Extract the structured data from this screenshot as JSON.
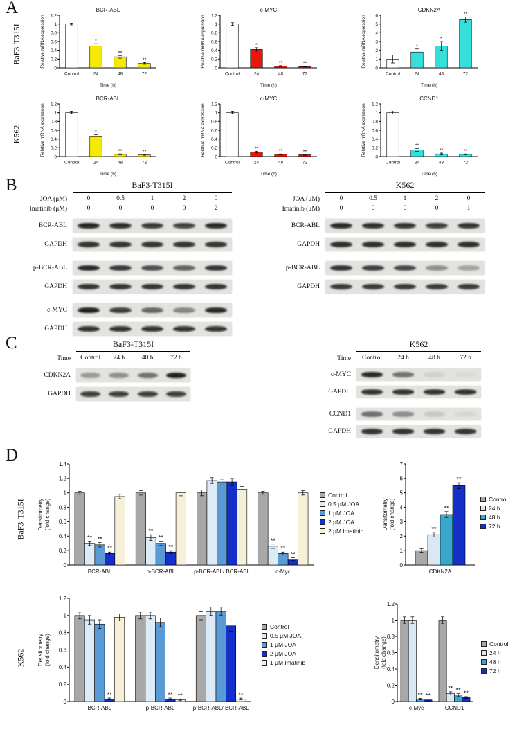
{
  "panels": {
    "A": {
      "letter": "A",
      "rows": [
        {
          "label": "BaF3-T315I",
          "charts": [
            "a1",
            "a2",
            "a3"
          ]
        },
        {
          "label": "K562",
          "charts": [
            "a4",
            "a5",
            "a6"
          ]
        }
      ]
    },
    "B": {
      "letter": "B",
      "left": {
        "title": "BaF3-T315I",
        "cond_rows": [
          {
            "label": "JOA (μM)",
            "values": [
              "0",
              "0.5",
              "1",
              "2",
              "0"
            ]
          },
          {
            "label": "Imatinib (μM)",
            "values": [
              "0",
              "0",
              "0",
              "0",
              "2"
            ]
          }
        ],
        "blots": [
          {
            "label": "BCR-ABL",
            "bands": [
              0.92,
              0.88,
              0.82,
              0.78,
              0.9
            ]
          },
          {
            "label": "GAPDH",
            "bands": [
              0.85,
              0.85,
              0.85,
              0.85,
              0.85
            ]
          },
          {
            "label": "p-BCR-ABL",
            "bands": [
              0.9,
              0.82,
              0.72,
              0.62,
              0.85
            ]
          },
          {
            "label": "GAPDH",
            "bands": [
              0.85,
              0.85,
              0.85,
              0.85,
              0.85
            ]
          },
          {
            "label": "c-MYC",
            "bands": [
              0.95,
              0.8,
              0.6,
              0.45,
              0.9
            ]
          },
          {
            "label": "GAPDH",
            "bands": [
              0.85,
              0.85,
              0.85,
              0.85,
              0.85
            ]
          }
        ]
      },
      "right": {
        "title": "K562",
        "cond_rows": [
          {
            "label": "JOA (μM)",
            "values": [
              "0",
              "0.5",
              "1",
              "2",
              "0"
            ]
          },
          {
            "label": "Imatinib (μM)",
            "values": [
              "0",
              "0",
              "0",
              "0",
              "1"
            ]
          }
        ],
        "blots": [
          {
            "label": "BCR-ABL",
            "bands": [
              0.9,
              0.87,
              0.85,
              0.8,
              0.85
            ]
          },
          {
            "label": "GAPDH",
            "bands": [
              0.88,
              0.88,
              0.88,
              0.88,
              0.88
            ]
          },
          {
            "label": "p-BCR-ABL",
            "bands": [
              0.85,
              0.8,
              0.75,
              0.4,
              0.3
            ]
          },
          {
            "label": "GAPDH",
            "bands": [
              0.82,
              0.82,
              0.82,
              0.82,
              0.82
            ]
          }
        ]
      }
    },
    "C": {
      "letter": "C",
      "left": {
        "title": "BaF3-T315I",
        "cond_rows": [
          {
            "label": "Time",
            "values": [
              "Control",
              "24 h",
              "48 h",
              "72 h"
            ]
          }
        ],
        "blots": [
          {
            "label": "CDKN2A",
            "bands": [
              0.35,
              0.4,
              0.55,
              0.95
            ]
          },
          {
            "label": "GAPDH",
            "bands": [
              0.8,
              0.8,
              0.8,
              0.8
            ]
          }
        ]
      },
      "right": {
        "title": "K562",
        "cond_rows": [
          {
            "label": "Time",
            "values": [
              "Control",
              "24 h",
              "48 h",
              "72 h"
            ]
          }
        ],
        "blots": [
          {
            "label": "c-MYC",
            "bands": [
              0.9,
              0.55,
              0.08,
              0.04
            ]
          },
          {
            "label": "GAPDH",
            "bands": [
              0.85,
              0.85,
              0.85,
              0.85
            ]
          },
          {
            "label": "CCND1",
            "bands": [
              0.55,
              0.4,
              0.12,
              0.05
            ]
          },
          {
            "label": "GAPDH",
            "bands": [
              0.85,
              0.85,
              0.85,
              0.85
            ]
          }
        ]
      }
    },
    "D": {
      "letter": "D",
      "rows": [
        {
          "label": "BaF3-T315I",
          "charts": [
            "d1",
            "d2"
          ]
        },
        {
          "label": "K562",
          "charts": [
            "d3",
            "d4"
          ]
        }
      ]
    }
  },
  "chart_data": [
    {
      "id": "a1",
      "type": "bar",
      "title": "BCR-ABL",
      "ylabel": "Relative mRNA expression",
      "xlabel": "Time (h)",
      "categories": [
        "Control",
        "24",
        "48",
        "72"
      ],
      "ylim": [
        0,
        1.2
      ],
      "yticks": [
        0,
        0.2,
        0.4,
        0.6,
        0.8,
        1,
        1.2
      ],
      "series": [
        {
          "name": "",
          "colors": [
            "#ffffff",
            "#f6eb00",
            "#f6eb00",
            "#f6eb00"
          ],
          "values": [
            1,
            0.5,
            0.25,
            0.1
          ],
          "errors": [
            0.02,
            0.05,
            0.03,
            0.02
          ],
          "sig": [
            "",
            "*",
            "**",
            "**"
          ]
        }
      ]
    },
    {
      "id": "a2",
      "type": "bar",
      "title": "c-MYC",
      "ylabel": "Relative mRNA expression",
      "xlabel": "Time (h)",
      "categories": [
        "Control",
        "24",
        "48",
        "72"
      ],
      "ylim": [
        0,
        1.2
      ],
      "yticks": [
        0,
        0.2,
        0.4,
        0.6,
        0.8,
        1,
        1.2
      ],
      "series": [
        {
          "name": "",
          "colors": [
            "#ffffff",
            "#e8160c",
            "#e8160c",
            "#e8160c"
          ],
          "values": [
            1,
            0.42,
            0.04,
            0.03
          ],
          "errors": [
            0.03,
            0.04,
            0.01,
            0.01
          ],
          "sig": [
            "",
            "*",
            "**",
            "**"
          ]
        }
      ]
    },
    {
      "id": "a3",
      "type": "bar",
      "title": "CDKN2A",
      "ylabel": "Relative mRNA expression",
      "xlabel": "Time (h)",
      "categories": [
        "Control",
        "24",
        "48",
        "72"
      ],
      "ylim": [
        0,
        6
      ],
      "yticks": [
        0,
        1,
        2,
        3,
        4,
        5,
        6
      ],
      "series": [
        {
          "name": "",
          "colors": [
            "#ffffff",
            "#35e0dc",
            "#35e0dc",
            "#35e0dc"
          ],
          "values": [
            1,
            1.8,
            2.5,
            5.5
          ],
          "errors": [
            0.45,
            0.35,
            0.5,
            0.3
          ],
          "sig": [
            "",
            "*",
            "*",
            "**"
          ]
        }
      ]
    },
    {
      "id": "a4",
      "type": "bar",
      "title": "BCR-ABL",
      "ylabel": "Relative mRNA expression",
      "xlabel": "Time (h)",
      "categories": [
        "Control",
        "24",
        "48",
        "72"
      ],
      "ylim": [
        0,
        1.2
      ],
      "yticks": [
        0,
        0.2,
        0.4,
        0.6,
        0.8,
        1,
        1.2
      ],
      "series": [
        {
          "name": "",
          "colors": [
            "#ffffff",
            "#f6eb00",
            "#f6eb00",
            "#f6eb00"
          ],
          "values": [
            1,
            0.45,
            0.05,
            0.04
          ],
          "errors": [
            0.02,
            0.05,
            0.01,
            0.01
          ],
          "sig": [
            "",
            "*",
            "**",
            "**"
          ]
        }
      ]
    },
    {
      "id": "a5",
      "type": "bar",
      "title": "c-MYC",
      "ylabel": "Relative mRNA expression",
      "xlabel": "Time (h)",
      "categories": [
        "Control",
        "24",
        "48",
        "72"
      ],
      "ylim": [
        0,
        1.2
      ],
      "yticks": [
        0,
        0.2,
        0.4,
        0.6,
        0.8,
        1,
        1.2
      ],
      "series": [
        {
          "name": "",
          "colors": [
            "#ffffff",
            "#e8160c",
            "#e8160c",
            "#e8160c"
          ],
          "values": [
            1,
            0.1,
            0.05,
            0.04
          ],
          "errors": [
            0.02,
            0.02,
            0.01,
            0.01
          ],
          "sig": [
            "",
            "**",
            "**",
            "**"
          ]
        }
      ]
    },
    {
      "id": "a6",
      "type": "bar",
      "title": "CCND1",
      "ylabel": "Relative mRNA expression",
      "xlabel": "Time (h)",
      "categories": [
        "Control",
        "24",
        "48",
        "72"
      ],
      "ylim": [
        0,
        1.2
      ],
      "yticks": [
        0,
        0.2,
        0.4,
        0.6,
        0.8,
        1,
        1.2
      ],
      "series": [
        {
          "name": "",
          "colors": [
            "#ffffff",
            "#35e0dc",
            "#35e0dc",
            "#35e0dc"
          ],
          "values": [
            1,
            0.15,
            0.06,
            0.05
          ],
          "errors": [
            0.03,
            0.03,
            0.02,
            0.01
          ],
          "sig": [
            "",
            "**",
            "**",
            "**"
          ]
        }
      ]
    },
    {
      "id": "d1",
      "type": "bar",
      "ylabel": [
        "Densitometry",
        "(fold change)"
      ],
      "categories": [
        "BCR-ABL",
        "p-BCR-ABL",
        "p-BCR-ABL/ BCR-ABL",
        "c-Myc"
      ],
      "ylim": [
        0,
        1.4
      ],
      "yticks": [
        0,
        0.2,
        0.4,
        0.6,
        0.8,
        1,
        1.2,
        1.4
      ],
      "legend_position": "right",
      "series": [
        {
          "name": "Control",
          "color": "#a8a8a8",
          "values": [
            1,
            1,
            1,
            1
          ],
          "errors": [
            0.02,
            0.03,
            0.04,
            0.02
          ],
          "sig": [
            "",
            "",
            "",
            ""
          ]
        },
        {
          "name": "0.5 μM JOA",
          "color": "#dcebf6",
          "values": [
            0.3,
            0.38,
            1.17,
            0.26
          ],
          "errors": [
            0.03,
            0.04,
            0.04,
            0.03
          ],
          "sig": [
            "**",
            "**",
            "",
            "**"
          ]
        },
        {
          "name": "1 μM JOA",
          "color": "#5b9bd5",
          "values": [
            0.28,
            0.3,
            1.15,
            0.16
          ],
          "errors": [
            0.03,
            0.03,
            0.04,
            0.02
          ],
          "sig": [
            "**",
            "**",
            "",
            "**"
          ]
        },
        {
          "name": "2 μM JOA",
          "color": "#1430c8",
          "values": [
            0.16,
            0.18,
            1.15,
            0.08
          ],
          "errors": [
            0.02,
            0.02,
            0.05,
            0.02
          ],
          "sig": [
            "**",
            "**",
            "",
            "**"
          ]
        },
        {
          "name": "2 μM Imatinib",
          "color": "#f6f0d8",
          "values": [
            0.95,
            1.0,
            1.05,
            1.0
          ],
          "errors": [
            0.03,
            0.04,
            0.04,
            0.03
          ],
          "sig": [
            "",
            "",
            "",
            ""
          ]
        }
      ]
    },
    {
      "id": "d2",
      "type": "bar",
      "ylabel": [
        "Densitometry",
        "(fold change)"
      ],
      "categories": [
        "CDKN2A"
      ],
      "ylim": [
        0,
        7
      ],
      "yticks": [
        0,
        1,
        2,
        3,
        4,
        5,
        6,
        7
      ],
      "legend_position": "right",
      "series": [
        {
          "name": "Control",
          "color": "#a8a8a8",
          "values": [
            1
          ],
          "errors": [
            0.12
          ],
          "sig": [
            ""
          ]
        },
        {
          "name": "24 h",
          "color": "#d9e8f3",
          "values": [
            2.1
          ],
          "errors": [
            0.15
          ],
          "sig": [
            "**"
          ]
        },
        {
          "name": "48 h",
          "color": "#3aa8ca",
          "values": [
            3.5
          ],
          "errors": [
            0.2
          ],
          "sig": [
            "**"
          ]
        },
        {
          "name": "72 h",
          "color": "#1430c8",
          "values": [
            5.5
          ],
          "errors": [
            0.2
          ],
          "sig": [
            "**"
          ]
        }
      ]
    },
    {
      "id": "d3",
      "type": "bar",
      "ylabel": [
        "Densitometry",
        "(fold change)"
      ],
      "categories": [
        "BCR-ABL",
        "p-BCR-ABL",
        "p-BCR-ABL/ BCR-ABL"
      ],
      "ylim": [
        0,
        1.2
      ],
      "yticks": [
        0,
        0.2,
        0.4,
        0.6,
        0.8,
        1,
        1.2
      ],
      "legend_position": "right",
      "series": [
        {
          "name": "Control",
          "color": "#a8a8a8",
          "values": [
            1,
            1,
            1
          ],
          "errors": [
            0.04,
            0.04,
            0.05
          ],
          "sig": [
            "",
            "",
            ""
          ]
        },
        {
          "name": "0.5 μM JOA",
          "color": "#dcebf6",
          "values": [
            0.95,
            1.0,
            1.05
          ],
          "errors": [
            0.05,
            0.04,
            0.05
          ],
          "sig": [
            "",
            "",
            ""
          ]
        },
        {
          "name": "1 μM JOA",
          "color": "#5b9bd5",
          "values": [
            0.9,
            0.92,
            1.05
          ],
          "errors": [
            0.05,
            0.05,
            0.05
          ],
          "sig": [
            "",
            "",
            ""
          ]
        },
        {
          "name": "2 μM JOA",
          "color": "#1430c8",
          "values": [
            0.03,
            0.03,
            0.88
          ],
          "errors": [
            0.01,
            0.01,
            0.06
          ],
          "sig": [
            "**",
            "**",
            ""
          ]
        },
        {
          "name": "1 μM Imatinib",
          "color": "#f6f0d8",
          "values": [
            0.98,
            0.02,
            0.03
          ],
          "errors": [
            0.04,
            0.01,
            0.01
          ],
          "sig": [
            "",
            "**",
            "**"
          ]
        }
      ]
    },
    {
      "id": "d4",
      "type": "bar",
      "ylabel": [
        "Densitometry",
        "(fold change)"
      ],
      "categories": [
        "c-Myc",
        "CCND1"
      ],
      "ylim": [
        0,
        1.2
      ],
      "yticks": [
        0,
        0.2,
        0.4,
        0.6,
        0.8,
        1,
        1.2
      ],
      "legend_position": "right",
      "series": [
        {
          "name": "Control",
          "color": "#a8a8a8",
          "values": [
            1,
            1
          ],
          "errors": [
            0.04,
            0.04
          ],
          "sig": [
            "",
            ""
          ]
        },
        {
          "name": "24 h",
          "color": "#d9e8f3",
          "values": [
            1.0,
            0.1
          ],
          "errors": [
            0.04,
            0.02
          ],
          "sig": [
            "",
            "**"
          ]
        },
        {
          "name": "48 h",
          "color": "#3aa8ca",
          "values": [
            0.03,
            0.08
          ],
          "errors": [
            0.01,
            0.02
          ],
          "sig": [
            "**",
            "**"
          ]
        },
        {
          "name": "72 h",
          "color": "#1430c8",
          "values": [
            0.02,
            0.05
          ],
          "errors": [
            0.01,
            0.01
          ],
          "sig": [
            "**",
            "**"
          ]
        }
      ]
    }
  ]
}
